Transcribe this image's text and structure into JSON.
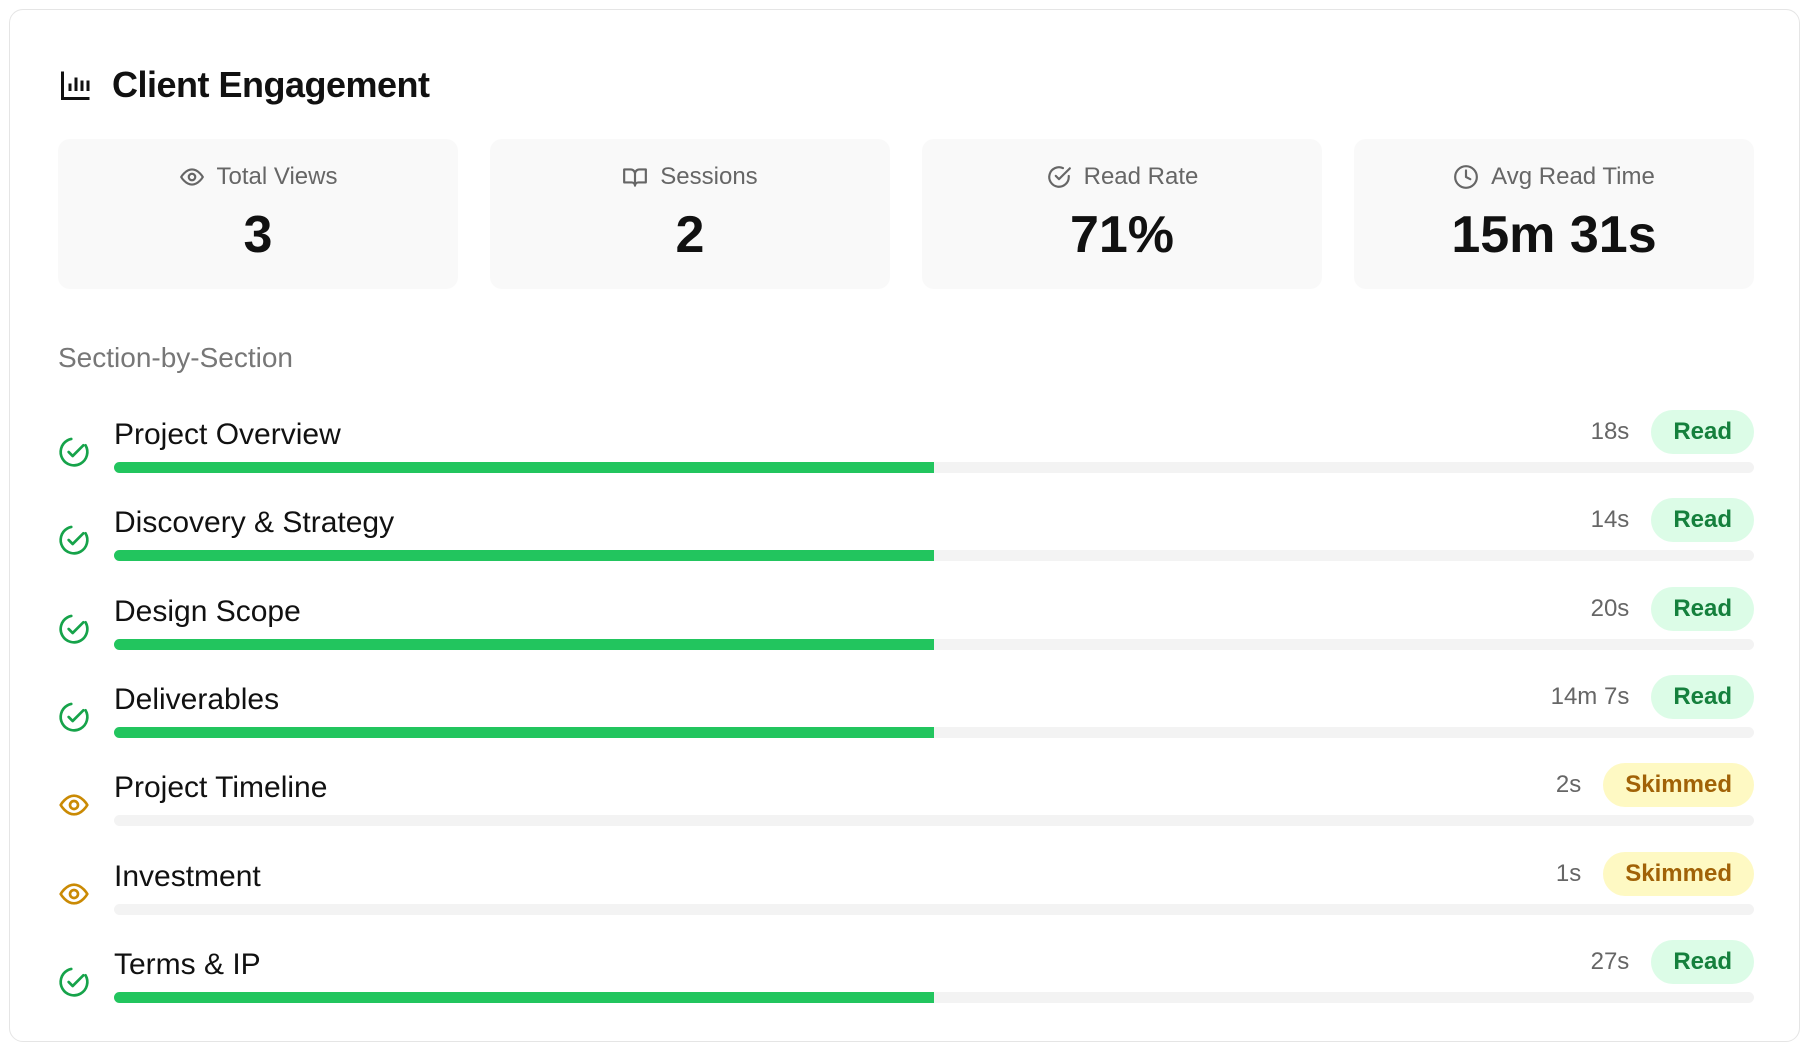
{
  "header": {
    "title": "Client Engagement"
  },
  "stats": [
    {
      "label": "Total Views",
      "value": "3"
    },
    {
      "label": "Sessions",
      "value": "2"
    },
    {
      "label": "Read Rate",
      "value": "71%"
    },
    {
      "label": "Avg Read Time",
      "value": "15m 31s"
    }
  ],
  "section_title": "Section-by-Section",
  "sections": [
    {
      "name": "Project Overview",
      "time": "18s",
      "status": "Read",
      "progress": 50,
      "color": "#22c55e"
    },
    {
      "name": "Discovery & Strategy",
      "time": "14s",
      "status": "Read",
      "progress": 50,
      "color": "#22c55e"
    },
    {
      "name": "Design Scope",
      "time": "20s",
      "status": "Read",
      "progress": 50,
      "color": "#22c55e"
    },
    {
      "name": "Deliverables",
      "time": "14m 7s",
      "status": "Read",
      "progress": 50,
      "color": "#22c55e"
    },
    {
      "name": "Project Timeline",
      "time": "2s",
      "status": "Skimmed",
      "progress": 0,
      "color": "#ca8a04"
    },
    {
      "name": "Investment",
      "time": "1s",
      "status": "Skimmed",
      "progress": 0,
      "color": "#ca8a04"
    },
    {
      "name": "Terms & IP",
      "time": "27s",
      "status": "Read",
      "progress": 50,
      "color": "#22c55e"
    }
  ]
}
